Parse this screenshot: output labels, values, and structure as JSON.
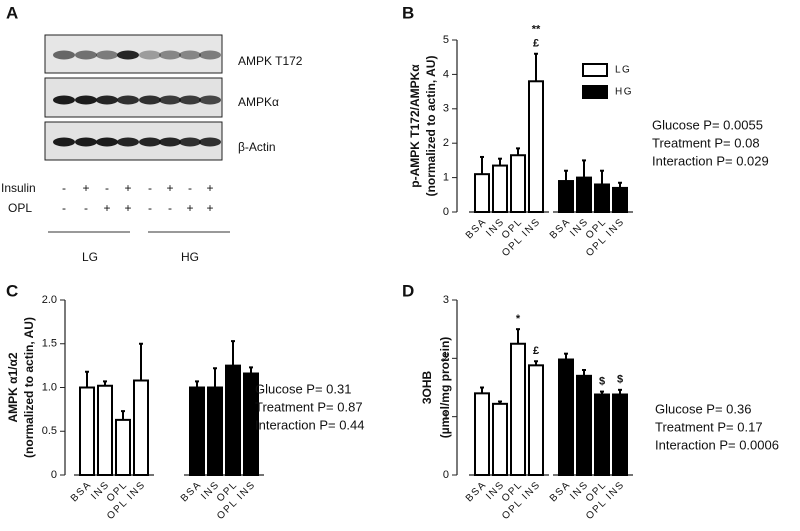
{
  "blot": {
    "panel": "A",
    "bands": [
      "AMPK T172",
      "AMPKα",
      "β-Actin"
    ],
    "rows": [
      {
        "label": "Insulin",
        "signs": [
          "-",
          "+",
          "-",
          "+",
          "-",
          "+",
          "-",
          "+"
        ]
      },
      {
        "label": "OPL",
        "signs": [
          "-",
          "-",
          "+",
          "+",
          "-",
          "-",
          "+",
          "+"
        ]
      }
    ],
    "groups": [
      "LG",
      "HG"
    ]
  },
  "chart_data": [
    {
      "type": "bar",
      "panel": "B",
      "ylabel": [
        "p-AMPK T172/AMPKα",
        "(normalized to actin, AU)"
      ],
      "categories": [
        "BSA",
        "INS",
        "OPL",
        "OPL INS"
      ],
      "series": [
        {
          "name": "LG",
          "color": "#ffffff",
          "values": [
            1.1,
            1.35,
            1.65,
            3.8
          ],
          "errors": [
            0.5,
            0.2,
            0.2,
            0.8
          ],
          "annotations": [
            null,
            null,
            null,
            [
              "**",
              "£"
            ]
          ]
        },
        {
          "name": "HG",
          "color": "#000000",
          "values": [
            0.9,
            1.0,
            0.8,
            0.7
          ],
          "errors": [
            0.3,
            0.5,
            0.4,
            0.15
          ]
        }
      ],
      "ylim": [
        0,
        5
      ],
      "yticks": [
        0,
        1,
        2,
        3,
        4,
        5
      ],
      "stats": [
        "Glucose P= 0.0055",
        "Treatment P= 0.08",
        "Interaction P= 0.029"
      ]
    },
    {
      "type": "bar",
      "panel": "C",
      "ylabel": [
        "AMPK α1/α2",
        "(normalized to actin, AU)"
      ],
      "categories": [
        "BSA",
        "INS",
        "OPL",
        "OPL INS"
      ],
      "series": [
        {
          "color": "#ffffff",
          "values": [
            1.0,
            1.02,
            0.63,
            1.08
          ],
          "errors": [
            0.18,
            0.05,
            0.1,
            0.42
          ]
        },
        {
          "color": "#000000",
          "values": [
            1.0,
            1.0,
            1.25,
            1.16
          ],
          "errors": [
            0.07,
            0.22,
            0.28,
            0.07
          ]
        }
      ],
      "ylim": [
        0,
        2
      ],
      "yticks": [
        0,
        0.5,
        {
          "value": 1,
          "label": "1.0"
        },
        1.5,
        {
          "value": 2,
          "label": "2.0"
        }
      ],
      "stats": [
        "Glucose P= 0.31",
        "Treatment P= 0.87",
        "Interaction P= 0.44"
      ]
    },
    {
      "type": "bar",
      "panel": "D",
      "ylabel": [
        "3OHB",
        "(µmol/mg protein)"
      ],
      "categories": [
        "BSA",
        "INS",
        "OPL",
        "OPL INS"
      ],
      "series": [
        {
          "color": "#ffffff",
          "values": [
            1.4,
            1.22,
            2.25,
            1.88
          ],
          "errors": [
            0.1,
            0.04,
            0.25,
            0.07
          ],
          "annotations": [
            null,
            null,
            [
              "*"
            ],
            [
              "£"
            ]
          ]
        },
        {
          "color": "#000000",
          "values": [
            1.98,
            1.7,
            1.38,
            1.38
          ],
          "errors": [
            0.1,
            0.1,
            0.05,
            0.08
          ],
          "annotations": [
            null,
            null,
            [
              "$"
            ],
            [
              "$"
            ]
          ]
        }
      ],
      "ylim": [
        0,
        3
      ],
      "yticks": [
        0,
        1,
        2,
        3
      ],
      "stats": [
        "Glucose P= 0.36",
        "Treatment P= 0.17",
        "Interaction P= 0.0006"
      ]
    }
  ]
}
